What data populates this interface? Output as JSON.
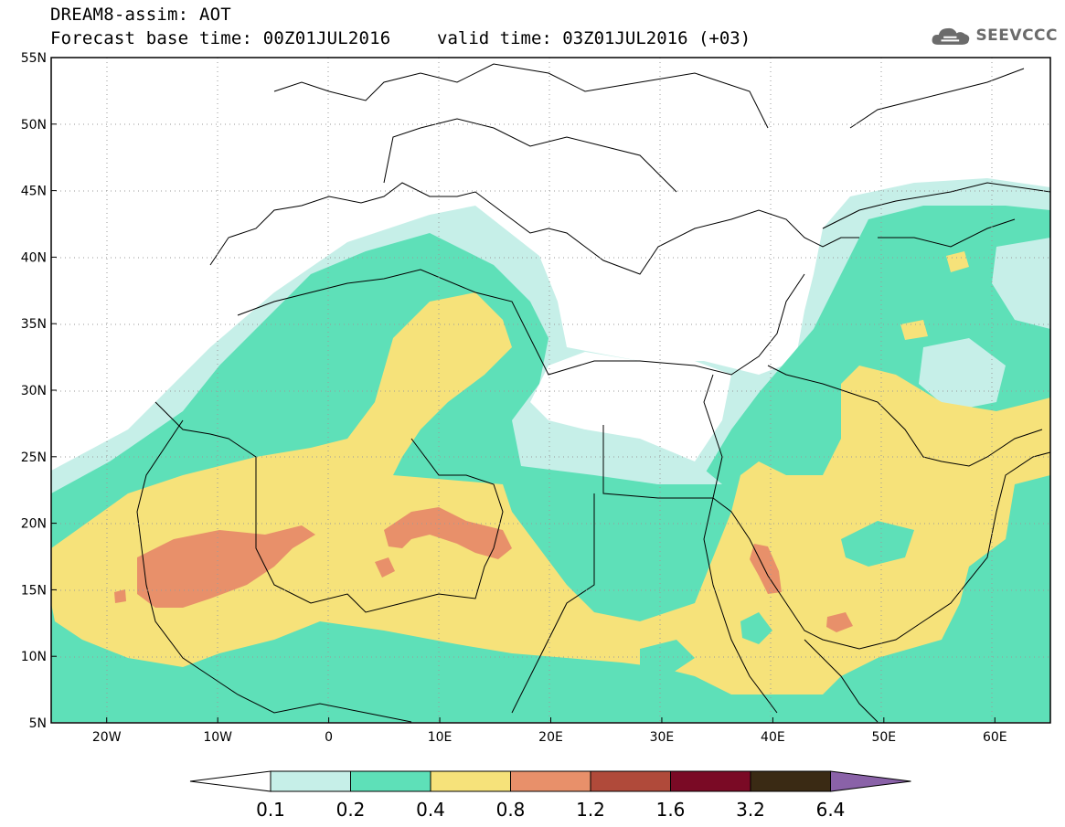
{
  "title": {
    "line1": "DREAM8-assim: AOT",
    "line2": "Forecast base time: 00Z01JUL2016",
    "valid_time": "valid time: 03Z01JUL2016 (+03)"
  },
  "logo": {
    "name": "cloud-logo-icon",
    "text": "SEEVCCC"
  },
  "map": {
    "lon_range": [
      -25,
      65
    ],
    "lat_range": [
      5,
      55
    ],
    "lat_ticks": [
      {
        "value": 55,
        "label": "55N"
      },
      {
        "value": 50,
        "label": "50N"
      },
      {
        "value": 45,
        "label": "45N"
      },
      {
        "value": 40,
        "label": "40N"
      },
      {
        "value": 35,
        "label": "35N"
      },
      {
        "value": 30,
        "label": "30N"
      },
      {
        "value": 25,
        "label": "25N"
      },
      {
        "value": 20,
        "label": "20N"
      },
      {
        "value": 15,
        "label": "15N"
      },
      {
        "value": 10,
        "label": "10N"
      },
      {
        "value": 5,
        "label": "5N"
      }
    ],
    "lon_ticks": [
      {
        "value": -20,
        "label": "20W"
      },
      {
        "value": -10,
        "label": "10W"
      },
      {
        "value": 0,
        "label": "0"
      },
      {
        "value": 10,
        "label": "10E"
      },
      {
        "value": 20,
        "label": "20E"
      },
      {
        "value": 30,
        "label": "30E"
      },
      {
        "value": 40,
        "label": "40E"
      },
      {
        "value": 50,
        "label": "50E"
      },
      {
        "value": 60,
        "label": "60E"
      }
    ],
    "grid": true
  },
  "colorbar": {
    "levels": [
      "0.1",
      "0.2",
      "0.4",
      "0.8",
      "1.2",
      "1.6",
      "3.2",
      "6.4"
    ],
    "colors": [
      "#ffffff",
      "#c6efe8",
      "#5ee0b8",
      "#f6e27a",
      "#e8906a",
      "#b04a3a",
      "#7a0a25",
      "#3a2a14",
      "#8a62a8"
    ]
  }
}
